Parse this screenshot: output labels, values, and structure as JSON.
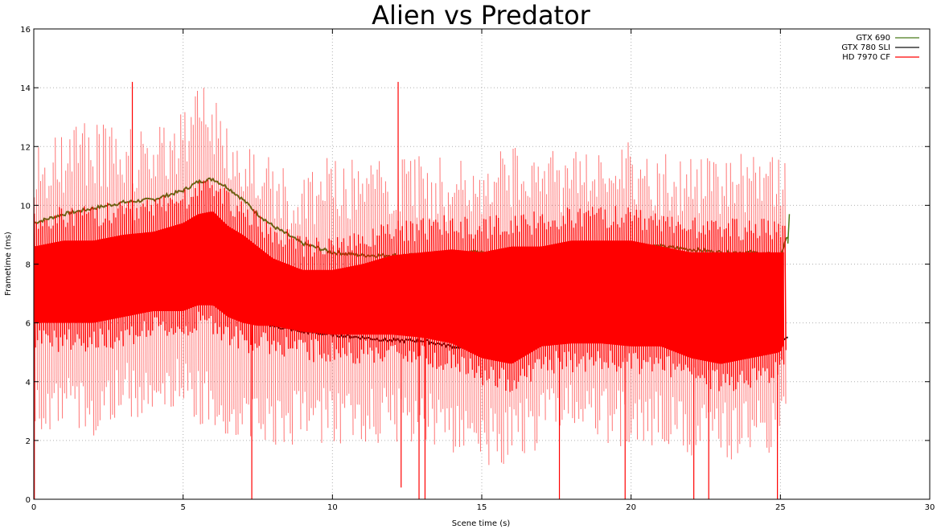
{
  "chart_data": {
    "type": "line",
    "title": "Alien vs Predator",
    "xlabel": "Scene time (s)",
    "ylabel": "Frametime (ms)",
    "xlim": [
      0,
      30
    ],
    "ylim": [
      0,
      16
    ],
    "xticks": [
      0,
      5,
      10,
      15,
      20,
      25,
      30
    ],
    "yticks": [
      0,
      2,
      4,
      6,
      8,
      10,
      12,
      14,
      16
    ],
    "grid": true,
    "legend_position": "top-right",
    "series": [
      {
        "name": "GTX 690",
        "color": "#4a7a1a",
        "smooth": true,
        "x": [
          0,
          1,
          2,
          3,
          4,
          5,
          5.5,
          6,
          6.5,
          7,
          7.5,
          8,
          9,
          10,
          11,
          12,
          13,
          14,
          15,
          16,
          17,
          18,
          19,
          20,
          21,
          22,
          23,
          24,
          25,
          25.3
        ],
        "y": [
          9.4,
          9.7,
          9.9,
          10.1,
          10.2,
          10.5,
          10.8,
          10.9,
          10.6,
          10.2,
          9.7,
          9.3,
          8.7,
          8.4,
          8.3,
          8.3,
          8.3,
          8.4,
          8.4,
          8.4,
          8.5,
          8.6,
          8.7,
          8.7,
          8.6,
          8.5,
          8.4,
          8.4,
          8.3,
          9.1
        ]
      },
      {
        "name": "GTX 780 SLI",
        "color": "#111111",
        "smooth": true,
        "x": [
          0,
          1,
          2,
          3,
          4,
          5,
          5.5,
          6,
          6.5,
          7,
          7.5,
          8,
          9,
          10,
          11,
          12,
          13,
          14,
          15,
          16,
          17,
          18,
          19,
          20,
          21,
          22,
          23,
          24,
          25,
          25.3
        ],
        "y": [
          6.4,
          6.5,
          6.6,
          6.6,
          6.6,
          6.6,
          6.7,
          6.8,
          6.7,
          6.4,
          6.1,
          5.9,
          5.7,
          5.6,
          5.5,
          5.4,
          5.4,
          5.2,
          5.1,
          5.2,
          5.3,
          5.4,
          5.4,
          5.3,
          5.3,
          5.4,
          5.4,
          5.4,
          5.4,
          5.6
        ]
      },
      {
        "name": "HD 7970 CF",
        "color": "#ff0000",
        "x": [
          0,
          1,
          2,
          3,
          4,
          5,
          5.5,
          6,
          6.5,
          7,
          7.5,
          8,
          9,
          10,
          11,
          12,
          13,
          14,
          15,
          16,
          17,
          18,
          19,
          20,
          21,
          22,
          23,
          24,
          25,
          25.2
        ],
        "y_high": [
          12.2,
          12.6,
          12.9,
          12.6,
          12.7,
          13.4,
          14.2,
          14.0,
          13.1,
          12.5,
          12.0,
          11.6,
          11.2,
          11.7,
          11.6,
          11.5,
          11.7,
          11.6,
          11.8,
          12.0,
          11.8,
          12.0,
          12.0,
          12.2,
          11.8,
          11.7,
          11.8,
          11.8,
          11.6,
          11.4
        ],
        "y_low": [
          2.4,
          2.3,
          2.0,
          2.7,
          2.9,
          2.9,
          2.5,
          2.5,
          2.0,
          1.7,
          1.9,
          1.8,
          1.8,
          1.8,
          1.8,
          1.9,
          2.0,
          1.6,
          1.1,
          1.2,
          1.8,
          1.9,
          1.8,
          1.8,
          1.7,
          1.4,
          1.3,
          1.4,
          1.6,
          2.3
        ],
        "y_core_high": [
          9.8,
          10.0,
          10.0,
          10.2,
          10.3,
          10.6,
          10.9,
          11.0,
          10.5,
          10.2,
          9.8,
          9.4,
          9.0,
          9.0,
          9.2,
          9.5,
          9.6,
          9.7,
          9.6,
          9.8,
          9.8,
          10.0,
          10.0,
          10.0,
          9.8,
          9.6,
          9.6,
          9.6,
          9.6,
          9.6
        ],
        "y_core_low": [
          5.0,
          5.0,
          5.0,
          5.2,
          5.4,
          5.4,
          5.6,
          5.6,
          5.2,
          5.0,
          4.9,
          4.9,
          4.7,
          4.6,
          4.6,
          4.6,
          4.5,
          4.3,
          3.8,
          3.6,
          4.2,
          4.3,
          4.3,
          4.2,
          4.2,
          3.8,
          3.6,
          3.8,
          4.0,
          4.5
        ],
        "spikes": [
          {
            "x": 0.02,
            "y": 0.0
          },
          {
            "x": 3.3,
            "y": 14.2
          },
          {
            "x": 7.3,
            "y": 0.0
          },
          {
            "x": 12.2,
            "y": 14.2
          },
          {
            "x": 12.3,
            "y": 0.4
          },
          {
            "x": 12.9,
            "y": 0.0
          },
          {
            "x": 13.1,
            "y": 0.0
          },
          {
            "x": 17.6,
            "y": 0.0
          },
          {
            "x": 19.8,
            "y": 0.0
          },
          {
            "x": 22.1,
            "y": 0.0
          },
          {
            "x": 22.6,
            "y": 0.0
          },
          {
            "x": 24.9,
            "y": 0.0
          }
        ]
      }
    ]
  }
}
